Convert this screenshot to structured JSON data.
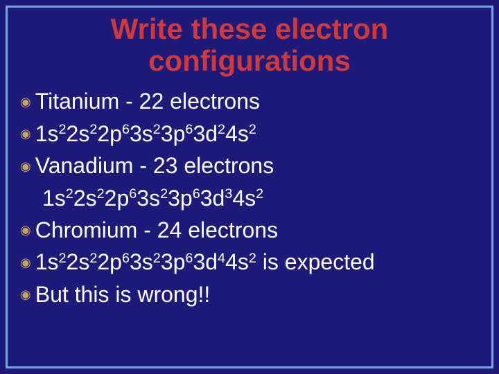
{
  "colors": {
    "background": "#1e1a7a",
    "border": "#7aa8e6",
    "title": "#d13a3a",
    "body": "#ffffff",
    "bullet": "#c9a860"
  },
  "title": {
    "line1": "Write these electron",
    "line2": "configurations"
  },
  "bullet_glyph": "◉",
  "lines": {
    "l1": "Titanium - 22 electrons",
    "l2": {
      "c": "1s",
      "e1": "2",
      "c2": "2s",
      "e2": "2",
      "c3": "2p",
      "e3": "6",
      "c4": "3s",
      "e4": "2",
      "c5": "3p",
      "e5": "6",
      "c6": "3d",
      "e6": "2",
      "c7": "4s",
      "e7": "2"
    },
    "l3": "Vanadium - 23 electrons",
    "l4": {
      "c": "1s",
      "e1": "2",
      "c2": "2s",
      "e2": "2",
      "c3": "2p",
      "e3": "6",
      "c4": "3s",
      "e4": "2",
      "c5": "3p",
      "e5": "6",
      "c6": "3d",
      "e6": "3",
      "c7": "4s",
      "e7": "2"
    },
    "l5": "Chromium - 24 electrons",
    "l6": {
      "c": "1s",
      "e1": "2",
      "c2": "2s",
      "e2": "2",
      "c3": "2p",
      "e3": "6",
      "c4": "3s",
      "e4": "2",
      "c5": "3p",
      "e5": "6",
      "c6": "3d",
      "e6": "4",
      "c7": "4s",
      "e7": "2",
      "tail": " is expected"
    },
    "l7": "But this is wrong!!"
  }
}
